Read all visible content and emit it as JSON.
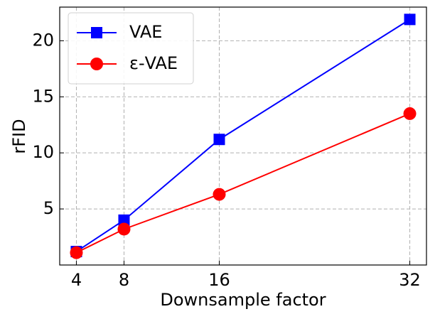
{
  "chart_data": {
    "type": "line",
    "x": [
      4,
      8,
      16,
      32
    ],
    "xlabel": "Downsample factor",
    "ylabel": "rFID",
    "series": [
      {
        "name": "VAE",
        "color": "#0000ff",
        "marker": "square",
        "values": [
          1.2,
          4.0,
          11.2,
          21.9
        ]
      },
      {
        "name": "ε-VAE",
        "color": "#ff0000",
        "marker": "circle",
        "values": [
          1.1,
          3.2,
          6.3,
          13.5
        ]
      }
    ],
    "xlim": [
      2.6,
      33.4
    ],
    "xticks": [
      4,
      8,
      16,
      32
    ],
    "ylim": [
      0,
      23
    ],
    "yticks": [
      5,
      10,
      15,
      20
    ],
    "grid": true,
    "legend": "upper left"
  }
}
